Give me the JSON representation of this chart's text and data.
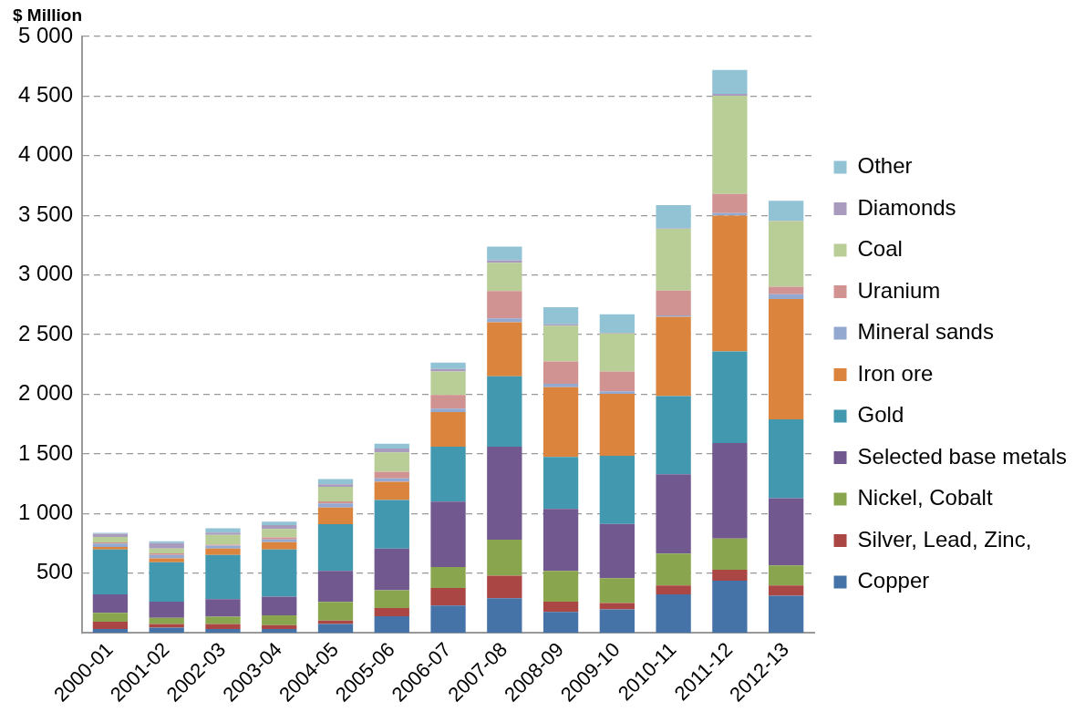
{
  "chart_data": {
    "type": "bar",
    "stacked": true,
    "ylabel": "$ Million",
    "categories": [
      "2000-01",
      "2001-02",
      "2002-03",
      "2003-04",
      "2004-05",
      "2005-06",
      "2006-07",
      "2007-08",
      "2008-09",
      "2009-10",
      "2010-11",
      "2011-12",
      "2012-13"
    ],
    "series": [
      {
        "name": "Copper",
        "color": "#4572a7",
        "values": [
          32,
          43,
          32,
          32,
          75,
          139,
          229,
          291,
          176,
          197,
          323,
          437,
          312
        ]
      },
      {
        "name": "Silver, Lead, Zinc,",
        "color": "#aa4643",
        "values": [
          61,
          32,
          43,
          32,
          29,
          69,
          147,
          189,
          85,
          53,
          75,
          93,
          85
        ]
      },
      {
        "name": "Nickel, Cobalt",
        "color": "#89a54e",
        "values": [
          75,
          51,
          61,
          83,
          155,
          149,
          176,
          301,
          259,
          208,
          267,
          261,
          168
        ]
      },
      {
        "name": "Selected base metals",
        "color": "#71588f",
        "values": [
          155,
          136,
          147,
          157,
          261,
          349,
          549,
          779,
          520,
          456,
          664,
          800,
          565
        ]
      },
      {
        "name": "Gold",
        "color": "#4198af",
        "values": [
          376,
          331,
          371,
          395,
          392,
          408,
          459,
          592,
          435,
          571,
          656,
          768,
          661
        ]
      },
      {
        "name": "Iron ore",
        "color": "#db843d",
        "values": [
          21,
          32,
          53,
          61,
          139,
          152,
          291,
          453,
          584,
          520,
          664,
          1139,
          1008
        ]
      },
      {
        "name": "Mineral sands",
        "color": "#93a9cf",
        "values": [
          29,
          29,
          24,
          24,
          35,
          29,
          29,
          32,
          29,
          21,
          13,
          21,
          40
        ]
      },
      {
        "name": "Uranium",
        "color": "#d19392",
        "values": [
          10,
          13,
          8,
          16,
          16,
          56,
          115,
          229,
          187,
          165,
          208,
          160,
          64
        ]
      },
      {
        "name": "Coal",
        "color": "#b9cd96",
        "values": [
          45,
          40,
          83,
          72,
          123,
          163,
          197,
          237,
          301,
          320,
          517,
          824,
          549
        ]
      },
      {
        "name": "Diamonds",
        "color": "#a99bbd",
        "values": [
          27,
          45,
          19,
          32,
          21,
          32,
          21,
          21,
          11,
          5,
          5,
          16,
          5
        ]
      },
      {
        "name": "Other",
        "color": "#92c3d5",
        "values": [
          8,
          16,
          35,
          29,
          43,
          40,
          53,
          115,
          144,
          155,
          195,
          200,
          165
        ]
      }
    ],
    "ylim": [
      0,
      5000
    ],
    "yticks": [
      500,
      {
        "value": 1000,
        "label": "1 000"
      },
      {
        "value": 1500,
        "label": "1 500"
      },
      {
        "value": 2000,
        "label": "2 000"
      },
      {
        "value": 2500,
        "label": "2 500"
      },
      {
        "value": 3000,
        "label": "3 000"
      },
      {
        "value": 3500,
        "label": "3 500"
      },
      {
        "value": 4000,
        "label": "4 000"
      },
      {
        "value": 4500,
        "label": "4 500"
      },
      {
        "value": 5000,
        "label": "5 000"
      }
    ],
    "grid": "y",
    "legend": "right"
  }
}
